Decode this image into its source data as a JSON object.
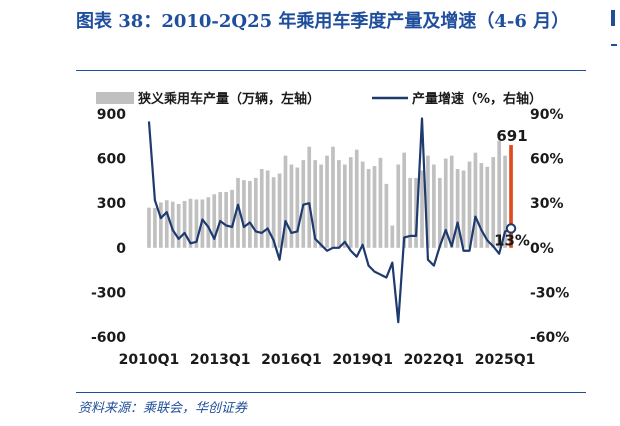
{
  "title": "图表 38：2010-2Q25 年乘用车季度产量及增速（4-6 月）",
  "source": "资料来源：乘联会，华创证券",
  "colors": {
    "bar": "#C0C0C0",
    "bar_highlight": "#E0491B",
    "line": "#1F3A6E",
    "title": "#1F4E9C"
  },
  "chart_data": {
    "type": "bar",
    "categories": [
      "2010Q1",
      "2010Q2",
      "2010Q3",
      "2010Q4",
      "2011Q1",
      "2011Q2",
      "2011Q3",
      "2011Q4",
      "2012Q1",
      "2012Q2",
      "2012Q3",
      "2012Q4",
      "2013Q1",
      "2013Q2",
      "2013Q3",
      "2013Q4",
      "2014Q1",
      "2014Q2",
      "2014Q3",
      "2014Q4",
      "2015Q1",
      "2015Q2",
      "2015Q3",
      "2015Q4",
      "2016Q1",
      "2016Q2",
      "2016Q3",
      "2016Q4",
      "2017Q1",
      "2017Q2",
      "2017Q3",
      "2017Q4",
      "2018Q1",
      "2018Q2",
      "2018Q3",
      "2018Q4",
      "2019Q1",
      "2019Q2",
      "2019Q3",
      "2019Q4",
      "2020Q1",
      "2020Q2",
      "2020Q3",
      "2020Q4",
      "2021Q1",
      "2021Q2",
      "2021Q3",
      "2021Q4",
      "2022Q1",
      "2022Q2",
      "2022Q3",
      "2022Q4",
      "2023Q1",
      "2023Q2",
      "2023Q3",
      "2023Q4",
      "2024Q1",
      "2024Q2",
      "2024Q3",
      "2024Q4",
      "2025Q1",
      "2025Q2"
    ],
    "x_tick_labels": [
      "2010Q1",
      "2013Q1",
      "2016Q1",
      "2019Q1",
      "2022Q1",
      "2025Q1"
    ],
    "series": [
      {
        "name": "狭义乘用车产量（万辆，左轴）",
        "type": "bar",
        "axis": "left",
        "values": [
          270,
          268,
          305,
          320,
          310,
          295,
          315,
          330,
          325,
          325,
          340,
          360,
          375,
          375,
          390,
          470,
          455,
          450,
          470,
          530,
          520,
          475,
          500,
          620,
          560,
          540,
          590,
          680,
          590,
          560,
          620,
          680,
          590,
          560,
          610,
          660,
          580,
          530,
          550,
          605,
          430,
          150,
          560,
          640,
          470,
          470,
          520,
          620,
          560,
          470,
          600,
          620,
          530,
          520,
          580,
          640,
          570,
          545,
          610,
          720,
          620,
          691
        ],
        "highlight_last": true
      },
      {
        "name": "产量增速（%，右轴）",
        "type": "line",
        "axis": "right",
        "values": [
          85,
          32,
          20,
          24,
          12,
          6,
          10,
          3,
          4,
          19,
          14,
          6,
          18,
          15,
          14,
          29,
          14,
          17,
          11,
          10,
          13,
          5,
          -8,
          18,
          10,
          11,
          29,
          30,
          6,
          2,
          -2,
          0,
          0,
          4,
          -2,
          -6,
          2,
          -12,
          -16,
          -18,
          -20,
          -10,
          -50,
          7,
          8,
          8,
          87,
          -8,
          -12,
          1,
          12,
          1,
          17,
          -2,
          -2,
          21,
          12,
          5,
          1,
          -4,
          11,
          13
        ]
      }
    ],
    "annotations": [
      {
        "text": "691",
        "series": 0,
        "index": 61
      },
      {
        "text": "13%",
        "series": 1,
        "index": 61
      }
    ],
    "left_axis": {
      "min": -600,
      "max": 900,
      "ticks": [
        900,
        600,
        300,
        0,
        -300,
        -600
      ]
    },
    "right_axis": {
      "min": -60,
      "max": 90,
      "ticks": [
        "90%",
        "60%",
        "30%",
        "0%",
        "-30%",
        "-60%"
      ],
      "values": [
        90,
        60,
        30,
        0,
        -30,
        -60
      ]
    },
    "legend_position": "top",
    "grid": false
  }
}
